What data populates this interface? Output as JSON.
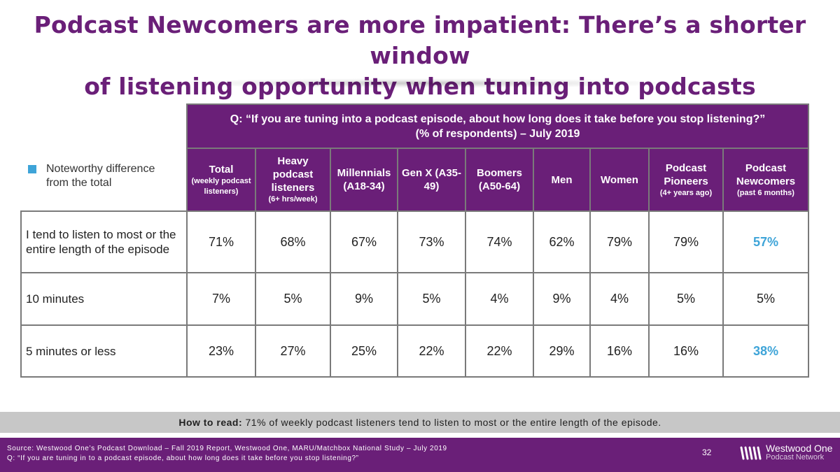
{
  "title": {
    "line1": "Podcast Newcomers are more impatient: There’s a shorter window",
    "line2": "of listening opportunity when tuning into podcasts"
  },
  "legend": {
    "label": "Noteworthy difference from the total",
    "color": "#3ea4d8"
  },
  "question": {
    "line1": "Q: “If you are tuning into a podcast episode, about how long does it take before you stop listening?”",
    "line2": "(% of respondents) – July 2019"
  },
  "columns": [
    {
      "label": "Total",
      "sub": "(weekly podcast listeners)"
    },
    {
      "label": "Heavy podcast listeners",
      "sub": "(6+ hrs/week)"
    },
    {
      "label": "Millennials (A18-34)",
      "sub": ""
    },
    {
      "label": "Gen X (A35-49)",
      "sub": ""
    },
    {
      "label": "Boomers (A50-64)",
      "sub": ""
    },
    {
      "label": "Men",
      "sub": ""
    },
    {
      "label": "Women",
      "sub": ""
    },
    {
      "label": "Podcast Pioneers",
      "sub": "(4+ years ago)"
    },
    {
      "label": "Podcast Newcomers",
      "sub": "(past 6 months)"
    }
  ],
  "rows": [
    {
      "label": "I tend to listen to most or the entire length of the episode",
      "values": [
        "71%",
        "68%",
        "67%",
        "73%",
        "74%",
        "62%",
        "79%",
        "79%",
        "57%"
      ],
      "highlight": [
        false,
        false,
        false,
        false,
        false,
        false,
        false,
        false,
        true
      ]
    },
    {
      "label": "10 minutes",
      "values": [
        "7%",
        "5%",
        "9%",
        "5%",
        "4%",
        "9%",
        "4%",
        "5%",
        "5%"
      ],
      "highlight": [
        false,
        false,
        false,
        false,
        false,
        false,
        false,
        false,
        false
      ]
    },
    {
      "label": "5 minutes or less",
      "values": [
        "23%",
        "27%",
        "25%",
        "22%",
        "22%",
        "29%",
        "16%",
        "16%",
        "38%"
      ],
      "highlight": [
        false,
        false,
        false,
        false,
        false,
        false,
        false,
        false,
        true
      ]
    }
  ],
  "how_to_read": {
    "label": "How to read:",
    "text": "71% of weekly podcast listeners tend to listen to most or the entire length of the episode."
  },
  "footer": {
    "source": "Source: Westwood One’s Podcast Download – Fall 2019 Report, Westwood One, MARU/Matchbox National Study – July 2019",
    "question": "Q: “If you are tuning in to a podcast episode, about how long does it take before you stop listening?”",
    "page_number": "32",
    "logo_name": "Westwood One",
    "logo_sub": "Podcast Network"
  },
  "colors": {
    "brand_purple": "#6a1f78",
    "highlight_blue": "#3ea4d8",
    "band_gray": "#c7c7c7"
  }
}
